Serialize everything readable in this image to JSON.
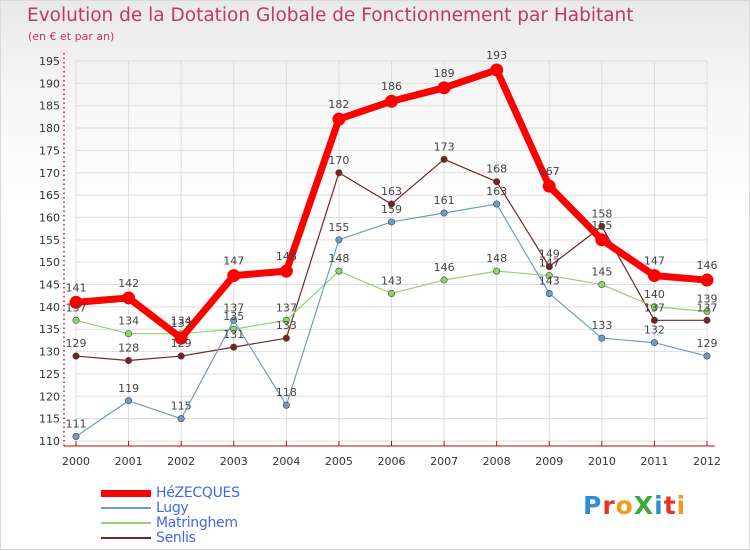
{
  "title": "Evolution de la Dotation Globale de Fonctionnement par Habitant",
  "subtitle": "(en € et par an)",
  "logo_text": "ProXiti",
  "logo_colors": [
    "#2d8fd6",
    "#e6342a",
    "#f29a1f",
    "#3cab3a",
    "#2d8fd6",
    "#e6342a",
    "#f29a1f"
  ],
  "chart_data": {
    "type": "line",
    "title": "Evolution de la Dotation Globale de Fonctionnement par Habitant",
    "subtitle": "(en € et par an)",
    "xlabel": "",
    "ylabel": "",
    "ylim": [
      110,
      195
    ],
    "yticks": [
      110,
      115,
      120,
      125,
      130,
      135,
      140,
      145,
      150,
      155,
      160,
      165,
      170,
      175,
      180,
      185,
      190,
      195
    ],
    "x": [
      "2000",
      "2001",
      "2002",
      "2003",
      "2004",
      "2005",
      "2006",
      "2007",
      "2008",
      "2009",
      "2010",
      "2011",
      "2012"
    ],
    "grid": true,
    "legend_position": "bottom-left",
    "series": [
      {
        "name": "HéZECQUES",
        "color": "#ff0000",
        "values": [
          141,
          142,
          133,
          147,
          148,
          182,
          186,
          189,
          193,
          167,
          155,
          147,
          146
        ]
      },
      {
        "name": "Lugy",
        "color": "#6b9dcc",
        "values": [
          111,
          119,
          115,
          137,
          118,
          155,
          159,
          161,
          163,
          143,
          133,
          132,
          129
        ]
      },
      {
        "name": "Matringhem",
        "color": "#8cd66b",
        "values": [
          137,
          134,
          134,
          135,
          137,
          148,
          143,
          146,
          148,
          147,
          145,
          140,
          139
        ]
      },
      {
        "name": "Senlis",
        "color": "#7a2222",
        "values": [
          129,
          128,
          129,
          131,
          133,
          170,
          163,
          173,
          168,
          149,
          158,
          137,
          137
        ]
      }
    ]
  }
}
